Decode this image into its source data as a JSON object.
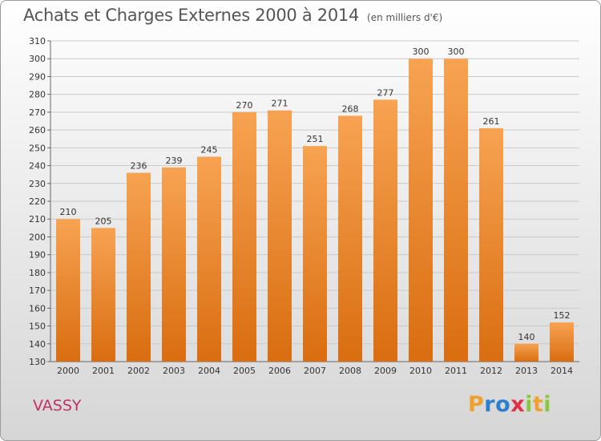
{
  "header": {
    "title": "Achats et Charges Externes 2000 à 2014",
    "unit": "(en milliers d'€)"
  },
  "commune": "VASSY",
  "logo": {
    "letters": [
      "P",
      "r",
      "o",
      "x",
      "i",
      "t",
      "i"
    ],
    "colors": [
      "#f0a030",
      "#2a7fd0",
      "#2a7fd0",
      "#e0304a",
      "#8cc63f",
      "#f0a030",
      "#8cc63f"
    ]
  },
  "colors": {
    "bar_top": "#f7a352",
    "bar_bottom": "#d96d10",
    "grid": "#c9c9c9"
  },
  "chart_data": {
    "type": "bar",
    "title": "Achats et Charges Externes 2000 à 2014",
    "subtitle": "(en milliers d'€)",
    "xlabel": "",
    "ylabel": "",
    "categories": [
      "2000",
      "2001",
      "2002",
      "2003",
      "2004",
      "2005",
      "2006",
      "2007",
      "2008",
      "2009",
      "2010",
      "2011",
      "2012",
      "2013",
      "2014"
    ],
    "values": [
      210,
      205,
      236,
      239,
      245,
      270,
      271,
      251,
      268,
      277,
      300,
      300,
      261,
      140,
      152
    ],
    "ylim": [
      130,
      310
    ],
    "ytick_step": 10,
    "grid": true
  }
}
